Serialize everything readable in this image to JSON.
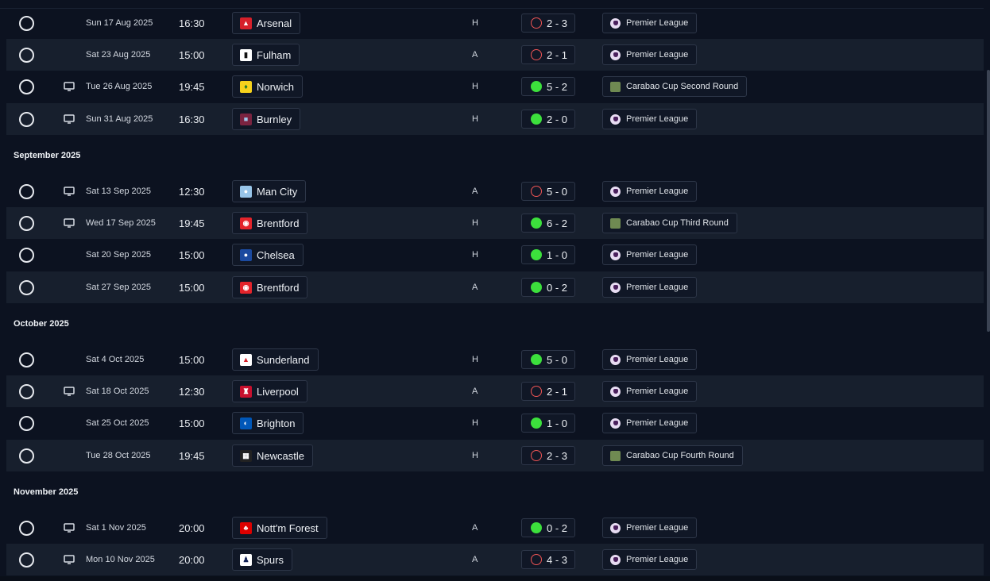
{
  "months": [
    {
      "label": ""
    },
    {
      "label": "September 2025"
    },
    {
      "label": "October 2025"
    },
    {
      "label": "November 2025"
    }
  ],
  "colors": {
    "win": "#3ce03c",
    "loss": "#f05555",
    "background": "#0c1220",
    "row_alt": "#171f2d"
  },
  "fixtures": [
    {
      "date": "Sun 17 Aug 2025",
      "time": "16:30",
      "tv": false,
      "team": "Arsenal",
      "crest": "arsenal-crest-icon",
      "venue": "H",
      "outcome": "loss",
      "score": "2 - 3",
      "competition": "Premier League",
      "comp_icon": "premier-league-icon"
    },
    {
      "date": "Sat 23 Aug 2025",
      "time": "15:00",
      "tv": false,
      "team": "Fulham",
      "crest": "fulham-crest-icon",
      "venue": "A",
      "outcome": "loss",
      "score": "2 - 1",
      "competition": "Premier League",
      "comp_icon": "premier-league-icon"
    },
    {
      "date": "Tue 26 Aug 2025",
      "time": "19:45",
      "tv": true,
      "team": "Norwich",
      "crest": "norwich-crest-icon",
      "venue": "H",
      "outcome": "win",
      "score": "5 - 2",
      "competition": "Carabao Cup Second Round",
      "comp_icon": "carabao-cup-icon"
    },
    {
      "date": "Sun 31 Aug 2025",
      "time": "16:30",
      "tv": true,
      "team": "Burnley",
      "crest": "burnley-crest-icon",
      "venue": "H",
      "outcome": "win",
      "score": "2 - 0",
      "competition": "Premier League",
      "comp_icon": "premier-league-icon"
    },
    {
      "date": "Sat 13 Sep 2025",
      "time": "12:30",
      "tv": true,
      "team": "Man City",
      "crest": "man-city-crest-icon",
      "venue": "A",
      "outcome": "loss",
      "score": "5 - 0",
      "competition": "Premier League",
      "comp_icon": "premier-league-icon"
    },
    {
      "date": "Wed 17 Sep 2025",
      "time": "19:45",
      "tv": true,
      "team": "Brentford",
      "crest": "brentford-crest-icon",
      "venue": "H",
      "outcome": "win",
      "score": "6 - 2",
      "competition": "Carabao Cup Third Round",
      "comp_icon": "carabao-cup-icon"
    },
    {
      "date": "Sat 20 Sep 2025",
      "time": "15:00",
      "tv": false,
      "team": "Chelsea",
      "crest": "chelsea-crest-icon",
      "venue": "H",
      "outcome": "win",
      "score": "1 - 0",
      "competition": "Premier League",
      "comp_icon": "premier-league-icon"
    },
    {
      "date": "Sat 27 Sep 2025",
      "time": "15:00",
      "tv": false,
      "team": "Brentford",
      "crest": "brentford-crest-icon",
      "venue": "A",
      "outcome": "win",
      "score": "0 - 2",
      "competition": "Premier League",
      "comp_icon": "premier-league-icon"
    },
    {
      "date": "Sat 4 Oct 2025",
      "time": "15:00",
      "tv": false,
      "team": "Sunderland",
      "crest": "sunderland-crest-icon",
      "venue": "H",
      "outcome": "win",
      "score": "5 - 0",
      "competition": "Premier League",
      "comp_icon": "premier-league-icon"
    },
    {
      "date": "Sat 18 Oct 2025",
      "time": "12:30",
      "tv": true,
      "team": "Liverpool",
      "crest": "liverpool-crest-icon",
      "venue": "A",
      "outcome": "loss",
      "score": "2 - 1",
      "competition": "Premier League",
      "comp_icon": "premier-league-icon"
    },
    {
      "date": "Sat 25 Oct 2025",
      "time": "15:00",
      "tv": false,
      "team": "Brighton",
      "crest": "brighton-crest-icon",
      "venue": "H",
      "outcome": "win",
      "score": "1 - 0",
      "competition": "Premier League",
      "comp_icon": "premier-league-icon"
    },
    {
      "date": "Tue 28 Oct 2025",
      "time": "19:45",
      "tv": false,
      "team": "Newcastle",
      "crest": "newcastle-crest-icon",
      "venue": "H",
      "outcome": "loss",
      "score": "2 - 3",
      "competition": "Carabao Cup Fourth Round",
      "comp_icon": "carabao-cup-icon"
    },
    {
      "date": "Sat 1 Nov 2025",
      "time": "20:00",
      "tv": true,
      "team": "Nott'm Forest",
      "crest": "nottm-forest-crest-icon",
      "venue": "A",
      "outcome": "win",
      "score": "0 - 2",
      "competition": "Premier League",
      "comp_icon": "premier-league-icon"
    },
    {
      "date": "Mon 10 Nov 2025",
      "time": "20:00",
      "tv": true,
      "team": "Spurs",
      "crest": "spurs-crest-icon",
      "venue": "A",
      "outcome": "loss",
      "score": "4 - 3",
      "competition": "Premier League",
      "comp_icon": "premier-league-icon"
    }
  ]
}
